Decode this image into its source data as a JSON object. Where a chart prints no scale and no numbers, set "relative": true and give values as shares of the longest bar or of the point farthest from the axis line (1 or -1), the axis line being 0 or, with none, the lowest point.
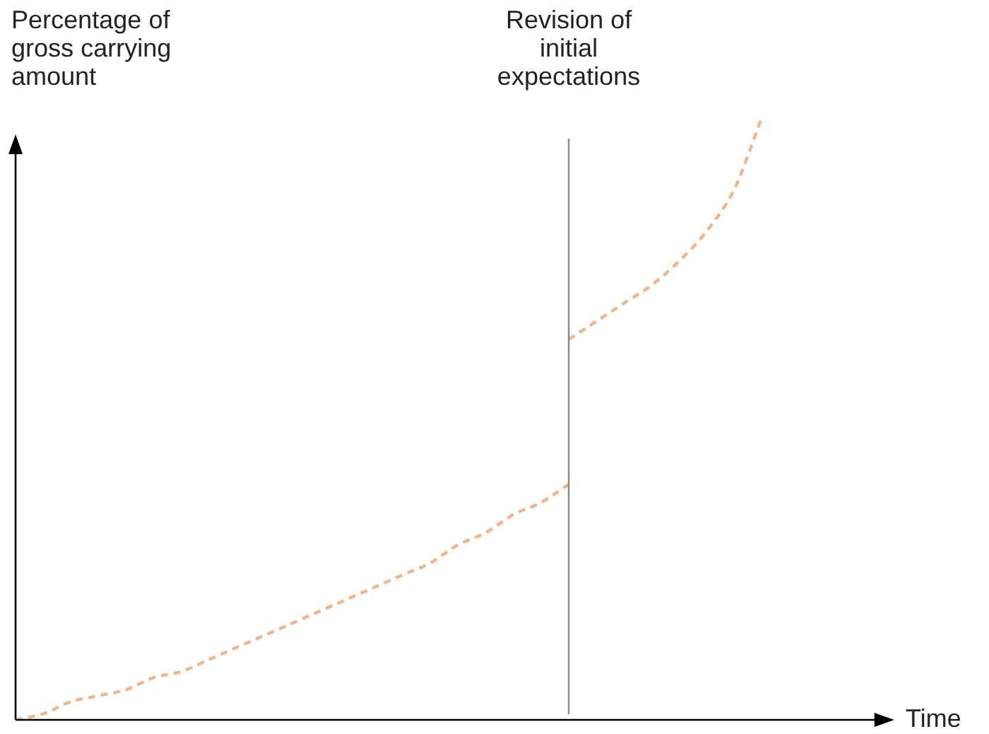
{
  "chart_data": {
    "type": "line",
    "relative": true,
    "ylabel": "Percentage of gross carrying amount",
    "xlabel": "Time",
    "categories": [
      null,
      null,
      null,
      null,
      null,
      null,
      null,
      null,
      null,
      null,
      null,
      null,
      null,
      null,
      null,
      null,
      null,
      null,
      null,
      null,
      null,
      null,
      null,
      null,
      null,
      null,
      null,
      null,
      null,
      null,
      null,
      null
    ],
    "series": [
      {
        "color": "#f2b48a",
        "values": [
          0,
          0.01,
          0.03,
          0.04,
          0.05,
          0.07,
          0.08,
          0.1,
          0.12,
          0.14,
          0.16,
          0.18,
          0.2,
          0.22,
          0.24,
          0.26,
          0.29,
          0.31,
          0.34,
          0.36,
          0.39,
          null,
          null,
          null,
          null,
          null,
          null,
          null,
          null,
          null,
          null,
          null
        ]
      },
      {
        "color": "#f2b48a",
        "values": [
          null,
          null,
          null,
          null,
          null,
          null,
          null,
          null,
          null,
          null,
          null,
          null,
          null,
          null,
          null,
          null,
          null,
          null,
          null,
          null,
          0.63,
          0.66,
          0.69,
          0.72,
          0.76,
          0.81,
          0.88,
          1,
          null,
          null,
          null,
          null
        ]
      }
    ],
    "annotations": [
      "Revision of initial expectations"
    ],
    "line_style": "dashed",
    "marker": "none",
    "legend": false
  }
}
